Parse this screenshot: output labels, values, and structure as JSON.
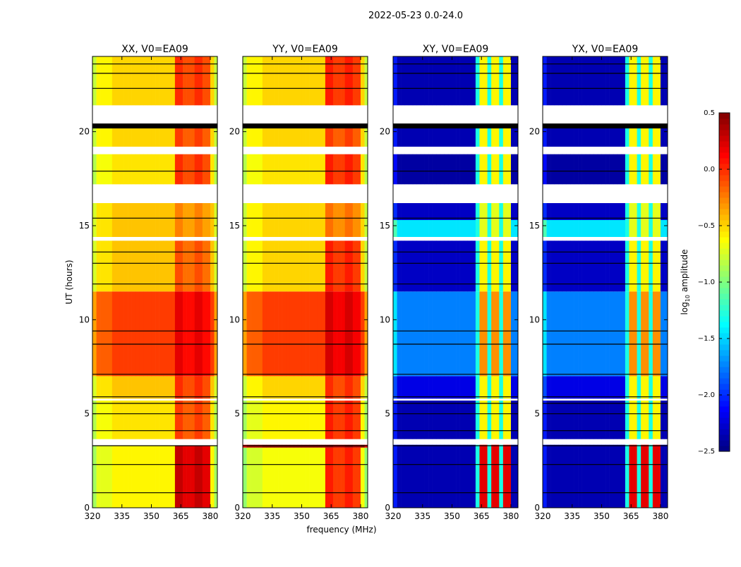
{
  "chart_data": {
    "type": "heatmap",
    "title": "2022-05-23 0.0-24.0",
    "xlabel": "frequency (MHz)",
    "ylabel": "UT (hours)",
    "xlim": [
      320,
      383.6
    ],
    "ylim": [
      0,
      24
    ],
    "xticks": [
      320,
      335,
      350,
      365,
      380
    ],
    "yticks": [
      0,
      5,
      10,
      15,
      20
    ],
    "colorbar": {
      "label": "log10 amplitude",
      "label_main": "log",
      "label_sub": "10",
      "label_rest": " amplitude",
      "colormap": "jet",
      "range": [
        -2.5,
        0.5
      ],
      "ticks": [
        0.5,
        0.0,
        -0.5,
        -1.0,
        -1.5,
        -2.0,
        -2.5
      ],
      "tick_labels": [
        "0.5",
        "0.0",
        "−0.5",
        "−1.0",
        "−1.5",
        "−2.0",
        "−2.5"
      ]
    },
    "rfi_band_mhz": [
      362,
      380
    ],
    "flagged_hours": [
      [
        20.4,
        21.4
      ],
      [
        16.2,
        17.2
      ],
      [
        3.4,
        3.65
      ],
      [
        5.7,
        5.8
      ],
      [
        14.2,
        14.4
      ],
      [
        18.8,
        19.2
      ],
      [
        6.8,
        6.95
      ]
    ],
    "black_lines_hours": [
      0.8,
      2.3,
      3.3,
      4.1,
      5.0,
      5.55,
      5.9,
      7.1,
      8.7,
      9.4,
      11.9,
      13.0,
      13.6,
      15.4,
      17.9,
      20.3,
      22.3,
      23.1,
      23.6
    ],
    "panels": [
      {
        "title": "XX, V0=EA09",
        "kind": "parallel",
        "segments": [
          {
            "hours": [
              0,
              3.3
            ],
            "base": -0.6,
            "band": 0.3
          },
          {
            "hours": [
              3.65,
              5.7
            ],
            "base": -0.55,
            "band": -0.05
          },
          {
            "hours": [
              5.8,
              7.0
            ],
            "base": -0.45,
            "band": 0.0
          },
          {
            "hours": [
              7.0,
              11.5
            ],
            "base": -0.05,
            "band": 0.2
          },
          {
            "hours": [
              11.5,
              14.2
            ],
            "base": -0.45,
            "band": -0.1
          },
          {
            "hours": [
              14.4,
              16.2
            ],
            "base": -0.45,
            "band": -0.25
          },
          {
            "hours": [
              17.2,
              18.8
            ],
            "base": -0.55,
            "band": 0.0
          },
          {
            "hours": [
              19.2,
              20.2
            ],
            "base": -0.5,
            "band": -0.05
          },
          {
            "hours": [
              21.4,
              24
            ],
            "base": -0.5,
            "band": 0.0
          }
        ]
      },
      {
        "title": "YY, V0=EA09",
        "kind": "parallel",
        "segments": [
          {
            "hours": [
              0,
              3.2
            ],
            "base": -0.65,
            "band": 0.05
          },
          {
            "hours": [
              3.2,
              3.35
            ],
            "base": 0.45,
            "band": 0.45
          },
          {
            "hours": [
              3.65,
              5.7
            ],
            "base": -0.6,
            "band": 0.05
          },
          {
            "hours": [
              5.8,
              7.0
            ],
            "base": -0.5,
            "band": 0.0
          },
          {
            "hours": [
              7.0,
              11.5
            ],
            "base": -0.05,
            "band": 0.25
          },
          {
            "hours": [
              11.5,
              14.2
            ],
            "base": -0.5,
            "band": 0.05
          },
          {
            "hours": [
              14.4,
              16.2
            ],
            "base": -0.5,
            "band": -0.2
          },
          {
            "hours": [
              17.2,
              18.8
            ],
            "base": -0.55,
            "band": 0.05
          },
          {
            "hours": [
              19.2,
              20.2
            ],
            "base": -0.5,
            "band": -0.05
          },
          {
            "hours": [
              21.4,
              24
            ],
            "base": -0.5,
            "band": 0.05
          }
        ]
      },
      {
        "title": "XY, V0=EA09",
        "kind": "cross",
        "segments": [
          {
            "hours": [
              0,
              3.35
            ],
            "base": -2.35,
            "band": 0.2
          },
          {
            "hours": [
              3.65,
              5.7
            ],
            "base": -2.35,
            "band": -0.6
          },
          {
            "hours": [
              5.8,
              7.0
            ],
            "base": -2.2,
            "band": -0.6
          },
          {
            "hours": [
              7.0,
              11.5
            ],
            "base": -1.75,
            "band": -0.3
          },
          {
            "hours": [
              11.5,
              14.2
            ],
            "base": -2.3,
            "band": -0.6
          },
          {
            "hours": [
              14.4,
              15.3
            ],
            "base": -1.45,
            "band": -0.7
          },
          {
            "hours": [
              15.3,
              16.2
            ],
            "base": -2.3,
            "band": -0.7
          },
          {
            "hours": [
              17.2,
              18.8
            ],
            "base": -2.4,
            "band": -0.6
          },
          {
            "hours": [
              19.2,
              20.2
            ],
            "base": -2.35,
            "band": -0.6
          },
          {
            "hours": [
              21.4,
              24
            ],
            "base": -2.35,
            "band": -0.6
          }
        ]
      },
      {
        "title": "YX, V0=EA09",
        "kind": "cross",
        "segments": [
          {
            "hours": [
              0,
              3.35
            ],
            "base": -2.35,
            "band": 0.2
          },
          {
            "hours": [
              3.65,
              5.7
            ],
            "base": -2.35,
            "band": -0.6
          },
          {
            "hours": [
              5.8,
              7.0
            ],
            "base": -2.2,
            "band": -0.6
          },
          {
            "hours": [
              7.0,
              11.5
            ],
            "base": -1.75,
            "band": -0.3
          },
          {
            "hours": [
              11.5,
              14.2
            ],
            "base": -2.3,
            "band": -0.6
          },
          {
            "hours": [
              14.4,
              15.3
            ],
            "base": -1.45,
            "band": -0.7
          },
          {
            "hours": [
              15.3,
              16.2
            ],
            "base": -2.3,
            "band": -0.7
          },
          {
            "hours": [
              17.2,
              18.8
            ],
            "base": -2.4,
            "band": -0.6
          },
          {
            "hours": [
              19.2,
              20.2
            ],
            "base": -2.35,
            "band": -0.6
          },
          {
            "hours": [
              21.4,
              24
            ],
            "base": -2.35,
            "band": -0.6
          }
        ]
      }
    ]
  }
}
